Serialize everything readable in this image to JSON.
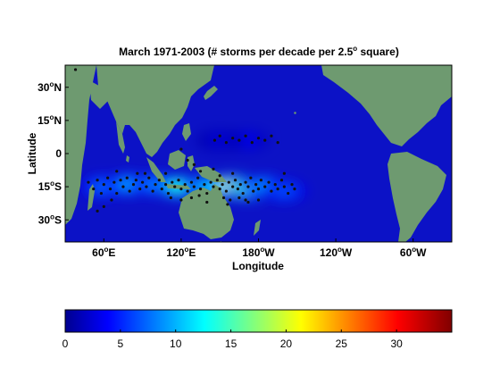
{
  "title_main": "March  1971-2003 (# storms per decade per 2.5",
  "title_deg": "o",
  "title_tail": " square)",
  "x_axis_label": "Longitude",
  "y_axis_label": "Latitude",
  "degree_mark": "o",
  "lat_ticks": [
    {
      "value": 30,
      "num": "30",
      "hem": "N"
    },
    {
      "value": 15,
      "num": "15",
      "hem": "N"
    },
    {
      "value": 0,
      "num": "0",
      "hem": ""
    },
    {
      "value": -15,
      "num": "15",
      "hem": "S"
    },
    {
      "value": -30,
      "num": "30",
      "hem": "S"
    }
  ],
  "lon_ticks": [
    {
      "value": 60,
      "num": "60",
      "hem": "E"
    },
    {
      "value": 120,
      "num": "120",
      "hem": "E"
    },
    {
      "value": 180,
      "num": "180",
      "hem": "W"
    },
    {
      "value": 240,
      "num": "120",
      "hem": "W"
    },
    {
      "value": 300,
      "num": "60",
      "hem": "W"
    }
  ],
  "colors": {
    "ocean": "#0c12c6",
    "land": "#6e9a70",
    "storm": "#111111"
  },
  "chart_data": {
    "type": "heatmap",
    "lon_range": [
      30,
      330
    ],
    "lat_range": [
      -40,
      40
    ],
    "colorbar": {
      "range": [
        0,
        35
      ],
      "ticks": [
        0,
        5,
        10,
        15,
        20,
        25,
        30
      ],
      "colormap": "jet"
    },
    "density_hotspots": [
      {
        "lon": 60,
        "lat": -15,
        "value": 8
      },
      {
        "lon": 80,
        "lat": -14,
        "value": 10
      },
      {
        "lon": 100,
        "lat": -14,
        "value": 9
      },
      {
        "lon": 118,
        "lat": -15,
        "value": 14
      },
      {
        "lon": 140,
        "lat": -15,
        "value": 11
      },
      {
        "lon": 160,
        "lat": -15,
        "value": 22
      },
      {
        "lon": 172,
        "lat": -16,
        "value": 16
      },
      {
        "lon": 185,
        "lat": -15,
        "value": 10
      },
      {
        "lon": 200,
        "lat": -17,
        "value": 7
      },
      {
        "lon": 170,
        "lat": 6,
        "value": 4
      },
      {
        "lon": 150,
        "lat": 6,
        "value": 3
      }
    ],
    "storm_points": [
      [
        48,
        -13
      ],
      [
        52,
        -16
      ],
      [
        55,
        -12
      ],
      [
        58,
        -18
      ],
      [
        60,
        -14
      ],
      [
        63,
        -11
      ],
      [
        65,
        -16
      ],
      [
        68,
        -13
      ],
      [
        70,
        -18
      ],
      [
        73,
        -12
      ],
      [
        75,
        -15
      ],
      [
        78,
        -11
      ],
      [
        80,
        -17
      ],
      [
        83,
        -14
      ],
      [
        85,
        -12
      ],
      [
        88,
        -16
      ],
      [
        90,
        -13
      ],
      [
        93,
        -15
      ],
      [
        95,
        -11
      ],
      [
        98,
        -17
      ],
      [
        100,
        -14
      ],
      [
        103,
        -12
      ],
      [
        105,
        -16
      ],
      [
        108,
        -14
      ],
      [
        110,
        -18
      ],
      [
        113,
        -13
      ],
      [
        115,
        -15
      ],
      [
        118,
        -12
      ],
      [
        120,
        -16
      ],
      [
        123,
        -14
      ],
      [
        125,
        -17
      ],
      [
        128,
        -13
      ],
      [
        130,
        -15
      ],
      [
        133,
        -11
      ],
      [
        135,
        -16
      ],
      [
        138,
        -14
      ],
      [
        140,
        -18
      ],
      [
        143,
        -13
      ],
      [
        145,
        -15
      ],
      [
        148,
        -12
      ],
      [
        150,
        -16
      ],
      [
        152,
        -14
      ],
      [
        155,
        -17
      ],
      [
        157,
        -13
      ],
      [
        160,
        -15
      ],
      [
        162,
        -12
      ],
      [
        164,
        -16
      ],
      [
        166,
        -14
      ],
      [
        168,
        -18
      ],
      [
        170,
        -13
      ],
      [
        172,
        -15
      ],
      [
        174,
        -11
      ],
      [
        176,
        -17
      ],
      [
        178,
        -14
      ],
      [
        180,
        -16
      ],
      [
        182,
        -12
      ],
      [
        185,
        -15
      ],
      [
        188,
        -13
      ],
      [
        190,
        -17
      ],
      [
        193,
        -14
      ],
      [
        195,
        -16
      ],
      [
        198,
        -12
      ],
      [
        200,
        -15
      ],
      [
        203,
        -18
      ],
      [
        206,
        -14
      ],
      [
        208,
        -16
      ],
      [
        153,
        -20
      ],
      [
        158,
        -21
      ],
      [
        165,
        -20
      ],
      [
        170,
        -21
      ],
      [
        112,
        -20
      ],
      [
        120,
        -21
      ],
      [
        128,
        -20
      ],
      [
        134,
        -19
      ],
      [
        146,
        6
      ],
      [
        150,
        8
      ],
      [
        155,
        5
      ],
      [
        160,
        7
      ],
      [
        165,
        6
      ],
      [
        170,
        8
      ],
      [
        175,
        5
      ],
      [
        180,
        7
      ],
      [
        185,
        6
      ],
      [
        190,
        8
      ],
      [
        195,
        5
      ],
      [
        120,
        2
      ],
      [
        125,
        -3
      ],
      [
        130,
        -5
      ],
      [
        135,
        -8
      ],
      [
        145,
        -7
      ],
      [
        92,
        -9
      ],
      [
        140,
        -22
      ],
      [
        156,
        -23
      ],
      [
        172,
        -22
      ],
      [
        180,
        -21
      ],
      [
        60,
        -24
      ],
      [
        66,
        -21
      ],
      [
        70,
        -8
      ],
      [
        86,
        -9
      ],
      [
        108,
        -9
      ],
      [
        150,
        -10
      ],
      [
        160,
        -9
      ],
      [
        200,
        -9
      ],
      [
        38,
        38
      ],
      [
        55,
        -26
      ]
    ]
  }
}
